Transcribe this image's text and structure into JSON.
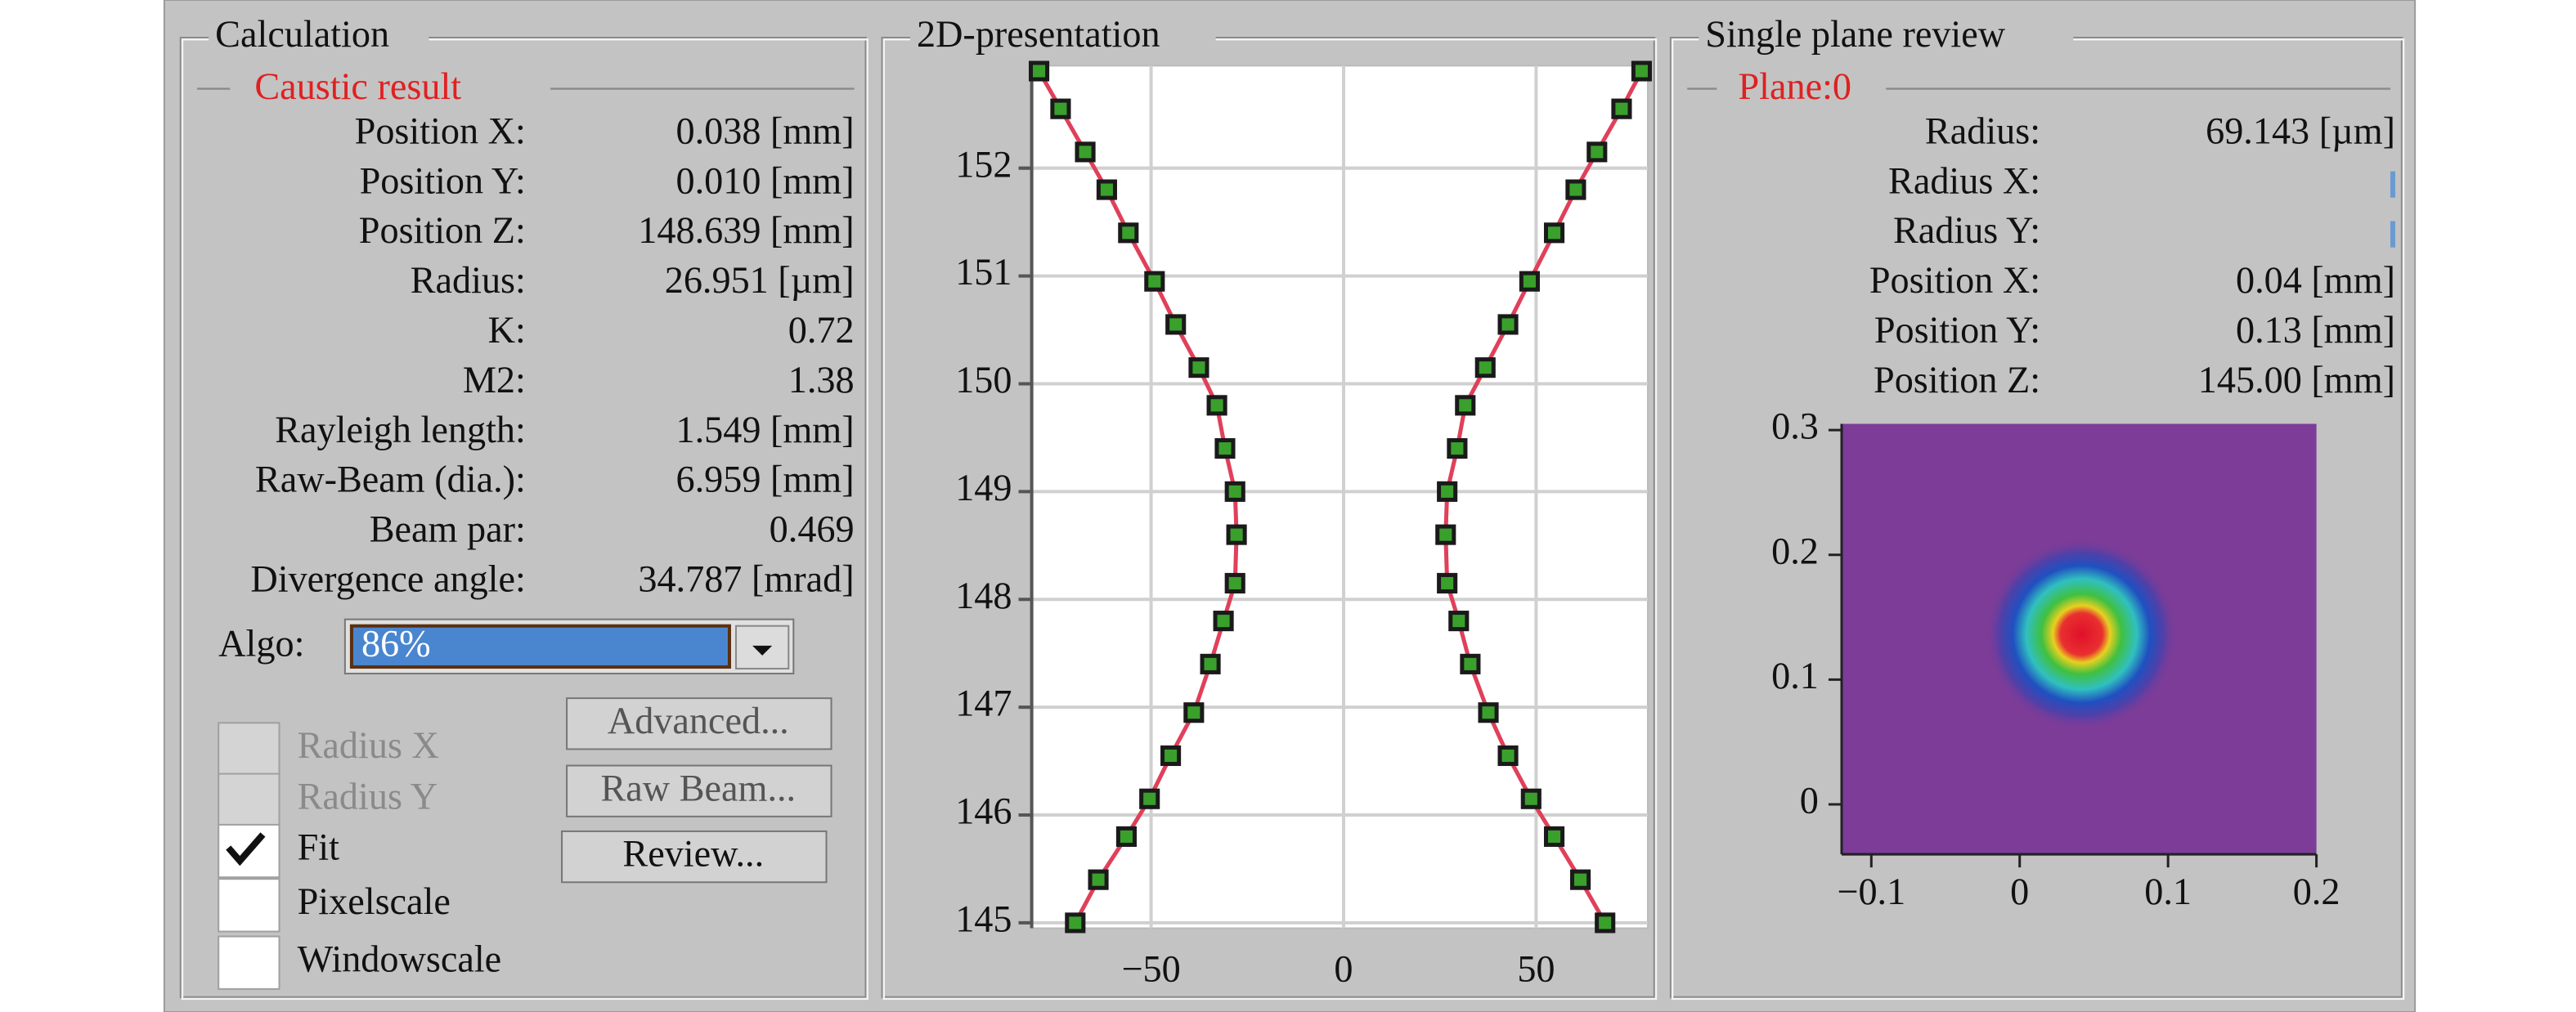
{
  "calculation": {
    "title": "Calculation",
    "section": "Caustic result",
    "rows": [
      {
        "label": "Position X:",
        "value": "0.038 [mm]"
      },
      {
        "label": "Position Y:",
        "value": "0.010 [mm]"
      },
      {
        "label": "Position Z:",
        "value": "148.639 [mm]"
      },
      {
        "label": "Radius:",
        "value": "26.951 [µm]"
      },
      {
        "label": "K:",
        "value": "0.72"
      },
      {
        "label": "M2:",
        "value": "1.38"
      },
      {
        "label": "Rayleigh length:",
        "value": "1.549 [mm]"
      },
      {
        "label": "Raw-Beam (dia.):",
        "value": "6.959 [mm]"
      },
      {
        "label": "Beam par:",
        "value": "0.469"
      },
      {
        "label": "Divergence angle:",
        "value": "34.787 [mrad]"
      }
    ],
    "algo": {
      "label": "Algo:",
      "value": "86%"
    },
    "checkboxes": [
      {
        "label": "Radius X",
        "checked": false,
        "enabled": false
      },
      {
        "label": "Radius Y",
        "checked": false,
        "enabled": false
      },
      {
        "label": "Fit",
        "checked": true,
        "enabled": true
      },
      {
        "label": "Pixelscale",
        "checked": false,
        "enabled": true
      },
      {
        "label": "Windowscale",
        "checked": false,
        "enabled": true
      }
    ],
    "buttons": [
      "Advanced...",
      "Raw Beam...",
      "Review..."
    ]
  },
  "review": {
    "title": "Single plane review",
    "section": "Plane:0",
    "rows": [
      {
        "label": "Radius:",
        "value": "69.143 [µm]"
      },
      {
        "label": "Radius X:"
      },
      {
        "label": "Radius Y:"
      },
      {
        "label": "Position X:",
        "value": "0.04 [mm]"
      },
      {
        "label": "Position Y:",
        "value": "0.13 [mm]"
      },
      {
        "label": "Position Z:",
        "value": "145.00 [mm]"
      }
    ]
  },
  "chart_data": [
    {
      "type": "scatter",
      "title": "2D-presentation",
      "xlim": [
        -81,
        79
      ],
      "ylim": [
        144.95,
        152.95
      ],
      "xticks": [
        {
          "value": -50,
          "label": "−50"
        },
        0,
        50
      ],
      "yticks": [
        145,
        146,
        147,
        148,
        149,
        150,
        151,
        152
      ],
      "grid": true,
      "color": "#3aa02c",
      "line_color": "#e0405a",
      "series": [
        {
          "x": [
            -79.1,
            -73.5,
            -67.1,
            -61.5,
            -55.9,
            -49.1,
            -43.6,
            -37.6,
            -32.9,
            -30.8,
            -28.2,
            -27.8,
            -28.2,
            -31.2,
            -34.6,
            -38.9,
            -44.9,
            -50.4,
            -56.4,
            -63.7,
            -69.7
          ],
          "values": [
            152.9,
            152.55,
            152.15,
            151.8,
            151.4,
            150.95,
            150.55,
            150.15,
            149.8,
            149.4,
            149.0,
            148.6,
            148.15,
            147.8,
            147.4,
            146.95,
            146.55,
            146.15,
            145.8,
            145.4,
            145.0
          ]
        },
        {
          "x": [
            77.4,
            72.2,
            65.8,
            60.3,
            54.7,
            48.3,
            42.7,
            36.8,
            31.6,
            29.5,
            26.9,
            26.5,
            26.9,
            29.9,
            32.9,
            37.6,
            42.7,
            48.7,
            54.7,
            61.5,
            67.9
          ],
          "values": [
            152.9,
            152.55,
            152.15,
            151.8,
            151.4,
            150.95,
            150.55,
            150.15,
            149.8,
            149.4,
            149.0,
            148.6,
            148.15,
            147.8,
            147.4,
            146.95,
            146.55,
            146.15,
            145.8,
            145.4,
            145.0
          ]
        }
      ]
    },
    {
      "type": "heatmap",
      "xlim": [
        -0.12,
        0.2
      ],
      "ylim": [
        -0.04,
        0.305
      ],
      "xticks": [
        {
          "value": -0.1,
          "label": "−0.1"
        },
        0,
        0.1,
        0.2
      ],
      "yticks": [
        0,
        0.1,
        0.2,
        0.3
      ]
    }
  ]
}
